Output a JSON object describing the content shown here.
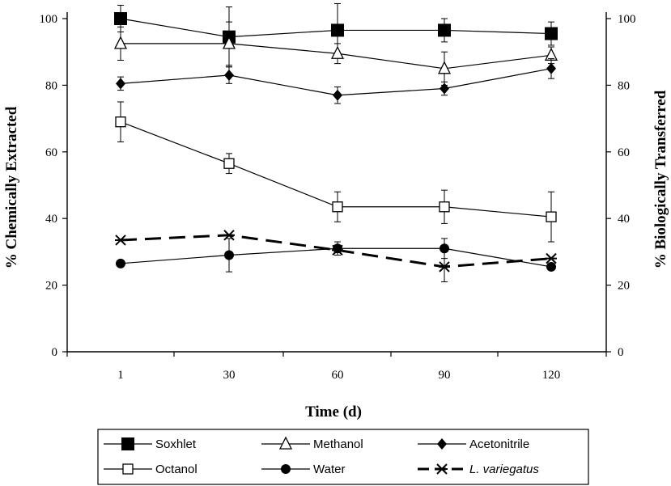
{
  "chart_data": {
    "type": "line",
    "xlabel": "Time (d)",
    "ylabel": "% Chemically Extracted",
    "y2label": "% Biologically Transferred",
    "categories": [
      "1",
      "30",
      "60",
      "90",
      "120"
    ],
    "ylim": [
      0,
      100
    ],
    "y2lim": [
      0,
      100
    ],
    "yticks": [
      "0",
      "20",
      "40",
      "60",
      "80",
      "100"
    ],
    "y2ticks": [
      "0",
      "20",
      "40",
      "60",
      "80",
      "100"
    ],
    "grid": false,
    "legend_position": "bottom",
    "series": [
      {
        "name": "Soxhlet",
        "marker": "square-filled",
        "line": "solid",
        "axis": "left",
        "values": [
          100,
          94.5,
          96.5,
          96.5,
          95.5
        ],
        "err": [
          4,
          9,
          8,
          3.5,
          3.5
        ]
      },
      {
        "name": "Methanol",
        "marker": "triangle-open",
        "line": "solid",
        "axis": "left",
        "values": [
          92.5,
          92.5,
          89.5,
          85,
          89
        ],
        "err": [
          5,
          6.5,
          3,
          5,
          2.5
        ]
      },
      {
        "name": "Acetonitrile",
        "marker": "diamond-filled",
        "line": "solid",
        "axis": "left",
        "values": [
          80.5,
          83,
          77,
          79,
          85
        ],
        "err": [
          2,
          2.5,
          2.5,
          2,
          3
        ]
      },
      {
        "name": "Octanol",
        "marker": "square-open",
        "line": "solid",
        "axis": "left",
        "values": [
          69,
          56.5,
          43.5,
          43.5,
          40.5
        ],
        "err": [
          6,
          3,
          4.5,
          5,
          7.5
        ]
      },
      {
        "name": "Water",
        "marker": "circle-filled",
        "line": "solid",
        "axis": "left",
        "values": [
          26.5,
          29,
          31,
          31,
          25.5
        ],
        "err": [
          0,
          5,
          2,
          3,
          0
        ]
      },
      {
        "name": "L. variegatus",
        "marker": "star",
        "line": "dashed",
        "axis": "right",
        "values": [
          33.5,
          35,
          30.5,
          25.5,
          28
        ],
        "err": [
          0,
          0,
          0,
          4.5,
          0
        ]
      }
    ]
  }
}
